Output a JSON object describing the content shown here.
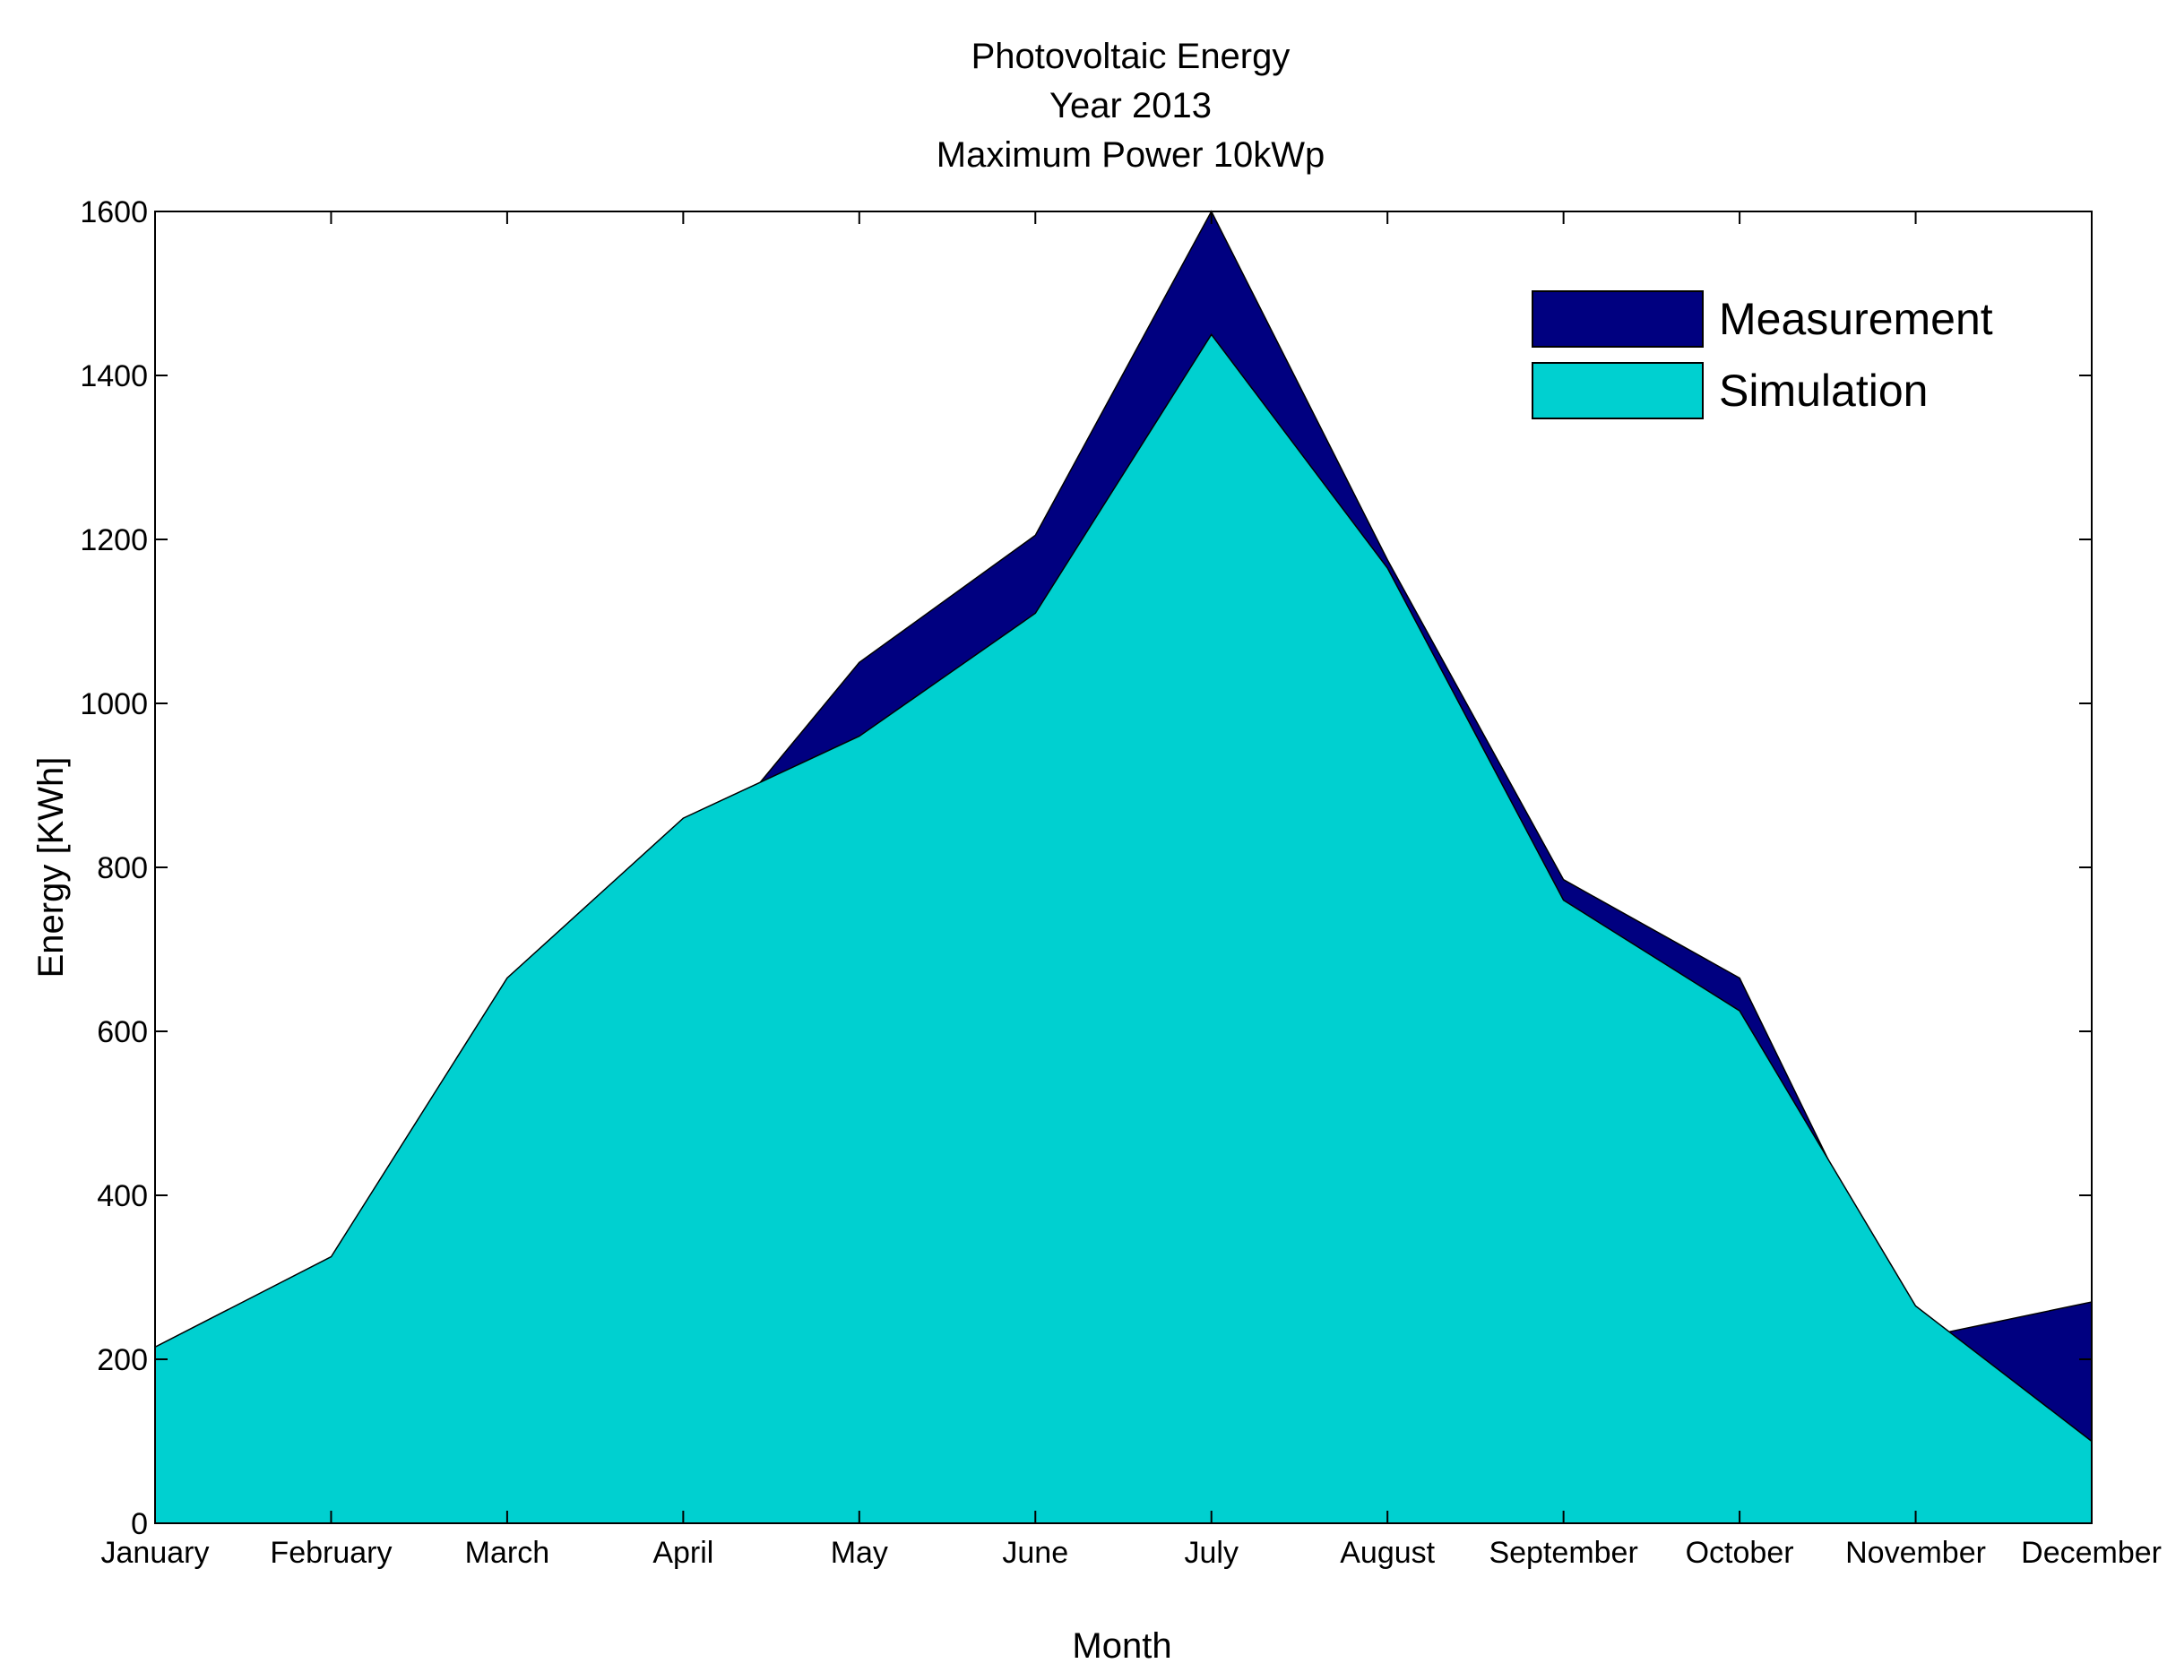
{
  "chart_data": {
    "type": "area",
    "title_lines": [
      "Photovoltaic Energy",
      "Year 2013",
      "Maximum Power 10kWp"
    ],
    "xlabel": "Month",
    "ylabel": "Energy [KWh]",
    "categories": [
      "January",
      "February",
      "March",
      "April",
      "May",
      "June",
      "July",
      "August",
      "September",
      "October",
      "November",
      "December"
    ],
    "ylim": [
      0,
      1600
    ],
    "yticks": [
      "0",
      "200",
      "400",
      "600",
      "800",
      "1000",
      "1200",
      "1400",
      "1600"
    ],
    "series": [
      {
        "name": "Measurement",
        "color": "#000080",
        "values": [
          100,
          95,
          305,
          790,
          1050,
          1205,
          1600,
          1175,
          785,
          665,
          225,
          270
        ]
      },
      {
        "name": "Simulation",
        "color": "#00d0d0",
        "values": [
          215,
          325,
          665,
          860,
          960,
          1110,
          1450,
          1165,
          760,
          625,
          265,
          100
        ]
      }
    ],
    "legend_position": "top-right",
    "grid": false
  }
}
